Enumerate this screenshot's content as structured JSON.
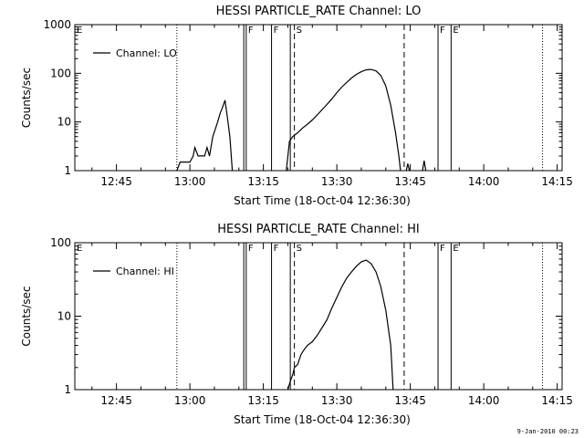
{
  "footer": {
    "timestamp": "9-Jan-2010 00:23"
  },
  "chart_data": [
    {
      "type": "line",
      "title": "HESSI PARTICLE_RATE Channel: LO",
      "xlabel": "Start Time (18-Oct-04 12:36:30)",
      "ylabel": "Counts/sec",
      "yscale": "log",
      "xlim": [
        "12:36:30",
        "14:16:00"
      ],
      "ylim": [
        1,
        1000
      ],
      "x_ticks": [
        "12:45",
        "13:00",
        "13:15",
        "13:30",
        "13:45",
        "14:00",
        "14:15"
      ],
      "y_ticks": [
        "1",
        "10",
        "100",
        "1000"
      ],
      "legend": {
        "label": "Channel: LO",
        "position": "top-left"
      },
      "markers": [
        {
          "time": "12:36:30",
          "label": "E",
          "style": "solid"
        },
        {
          "time": "12:57:20",
          "label": "",
          "style": "dotted"
        },
        {
          "time": "13:11:00",
          "label": "",
          "style": "solid"
        },
        {
          "time": "13:11:30",
          "label": "F",
          "style": "solid"
        },
        {
          "time": "13:16:40",
          "label": "F",
          "style": "solid"
        },
        {
          "time": "13:20:30",
          "label": "",
          "style": "solid"
        },
        {
          "time": "13:21:20",
          "label": "S",
          "style": "dashed"
        },
        {
          "time": "13:43:45",
          "label": "",
          "style": "dashed"
        },
        {
          "time": "13:50:40",
          "label": "F",
          "style": "solid"
        },
        {
          "time": "13:53:20",
          "label": "E",
          "style": "solid"
        },
        {
          "time": "14:12:00",
          "label": "",
          "style": "dotted"
        }
      ],
      "series": [
        {
          "name": "Channel: LO",
          "segments": [
            [
              [
                "12:57:20",
                1
              ],
              [
                "12:58:00",
                1.5
              ],
              [
                "12:59:00",
                1.5
              ],
              [
                "13:00:00",
                1.5
              ],
              [
                "13:00:40",
                2
              ],
              [
                "13:01:00",
                3
              ],
              [
                "13:01:40",
                2
              ],
              [
                "13:02:20",
                2
              ],
              [
                "13:03:00",
                2
              ],
              [
                "13:03:30",
                3
              ],
              [
                "13:04:00",
                2
              ],
              [
                "13:04:40",
                5
              ],
              [
                "13:05:10",
                7
              ],
              [
                "13:05:40",
                10
              ],
              [
                "13:06:10",
                15
              ],
              [
                "13:06:40",
                20
              ],
              [
                "13:07:10",
                28
              ],
              [
                "13:07:40",
                12
              ],
              [
                "13:08:10",
                5
              ],
              [
                "13:08:40",
                1
              ]
            ],
            [
              [
                "13:19:40",
                1
              ],
              [
                "13:20:00",
                2
              ],
              [
                "13:20:20",
                4
              ],
              [
                "13:21:00",
                5
              ],
              [
                "13:22:00",
                6
              ],
              [
                "13:23:00",
                7.5
              ],
              [
                "13:24:00",
                9
              ],
              [
                "13:25:00",
                11
              ],
              [
                "13:26:00",
                14
              ],
              [
                "13:27:00",
                18
              ],
              [
                "13:28:00",
                23
              ],
              [
                "13:29:00",
                30
              ],
              [
                "13:30:00",
                40
              ],
              [
                "13:31:00",
                52
              ],
              [
                "13:32:00",
                65
              ],
              [
                "13:33:00",
                80
              ],
              [
                "13:34:00",
                95
              ],
              [
                "13:35:00",
                108
              ],
              [
                "13:36:00",
                118
              ],
              [
                "13:37:00",
                120
              ],
              [
                "13:38:00",
                112
              ],
              [
                "13:39:00",
                90
              ],
              [
                "13:40:00",
                55
              ],
              [
                "13:41:00",
                22
              ],
              [
                "13:42:00",
                6
              ],
              [
                "13:42:40",
                2
              ],
              [
                "13:43:00",
                1
              ]
            ],
            [
              [
                "13:44:10",
                1
              ],
              [
                "13:44:30",
                1.4
              ],
              [
                "13:44:50",
                1
              ]
            ],
            [
              [
                "13:47:30",
                1
              ],
              [
                "13:47:50",
                1.6
              ],
              [
                "13:48:10",
                1
              ]
            ]
          ]
        }
      ]
    },
    {
      "type": "line",
      "title": "HESSI PARTICLE_RATE Channel: HI",
      "xlabel": "Start Time (18-Oct-04 12:36:30)",
      "ylabel": "Counts/sec",
      "yscale": "log",
      "xlim": [
        "12:36:30",
        "14:16:00"
      ],
      "ylim": [
        1,
        100
      ],
      "x_ticks": [
        "12:45",
        "13:00",
        "13:15",
        "13:30",
        "13:45",
        "14:00",
        "14:15"
      ],
      "y_ticks": [
        "1",
        "10",
        "100"
      ],
      "legend": {
        "label": "Channel: HI",
        "position": "top-left"
      },
      "markers": [
        {
          "time": "12:36:30",
          "label": "E",
          "style": "solid"
        },
        {
          "time": "12:57:20",
          "label": "",
          "style": "dotted"
        },
        {
          "time": "13:11:00",
          "label": "",
          "style": "solid"
        },
        {
          "time": "13:11:30",
          "label": "F",
          "style": "solid"
        },
        {
          "time": "13:16:40",
          "label": "F",
          "style": "solid"
        },
        {
          "time": "13:20:30",
          "label": "",
          "style": "solid"
        },
        {
          "time": "13:21:20",
          "label": "S",
          "style": "dashed"
        },
        {
          "time": "13:43:45",
          "label": "",
          "style": "dashed"
        },
        {
          "time": "13:50:40",
          "label": "F",
          "style": "solid"
        },
        {
          "time": "13:53:20",
          "label": "E",
          "style": "solid"
        },
        {
          "time": "14:12:00",
          "label": "",
          "style": "dotted"
        }
      ],
      "series": [
        {
          "name": "Channel: HI",
          "segments": [
            [
              [
                "13:20:00",
                1
              ],
              [
                "13:20:30",
                1.3
              ],
              [
                "13:21:00",
                1.6
              ],
              [
                "13:21:20",
                2
              ],
              [
                "13:22:00",
                2.2
              ],
              [
                "13:22:40",
                3
              ],
              [
                "13:23:20",
                3.5
              ],
              [
                "13:24:00",
                4
              ],
              [
                "13:25:00",
                4.5
              ],
              [
                "13:26:00",
                5.5
              ],
              [
                "13:27:00",
                7
              ],
              [
                "13:28:00",
                9
              ],
              [
                "13:29:00",
                13
              ],
              [
                "13:30:00",
                18
              ],
              [
                "13:31:00",
                25
              ],
              [
                "13:32:00",
                33
              ],
              [
                "13:33:00",
                40
              ],
              [
                "13:34:00",
                48
              ],
              [
                "13:35:00",
                55
              ],
              [
                "13:36:00",
                58
              ],
              [
                "13:37:00",
                52
              ],
              [
                "13:38:00",
                40
              ],
              [
                "13:39:00",
                25
              ],
              [
                "13:40:00",
                12
              ],
              [
                "13:41:00",
                4
              ],
              [
                "13:41:30",
                1
              ]
            ]
          ]
        }
      ]
    }
  ]
}
